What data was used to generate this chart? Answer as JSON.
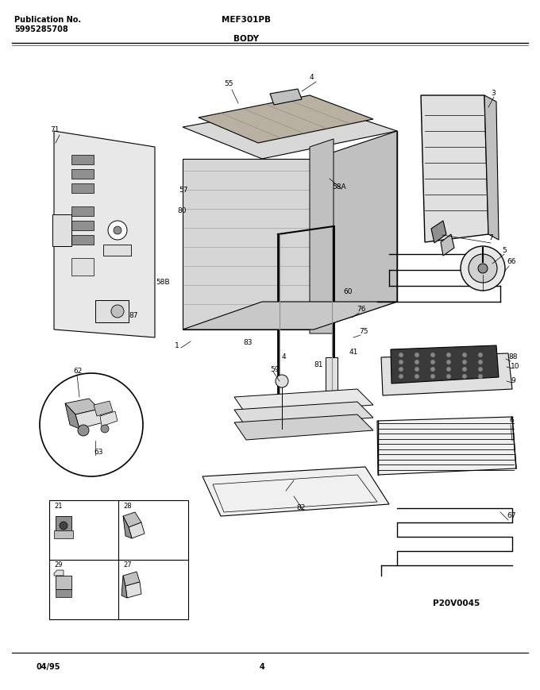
{
  "title": "MEF301PB",
  "subtitle": "BODY",
  "pub_label": "Publication No.",
  "pub_number": "5995285708",
  "date": "04/95",
  "page": "4",
  "diagram_code": "P20V0045",
  "bg_color": "#ffffff",
  "line_color": "#000000",
  "fig_width": 6.8,
  "fig_height": 8.69,
  "dpi": 100
}
